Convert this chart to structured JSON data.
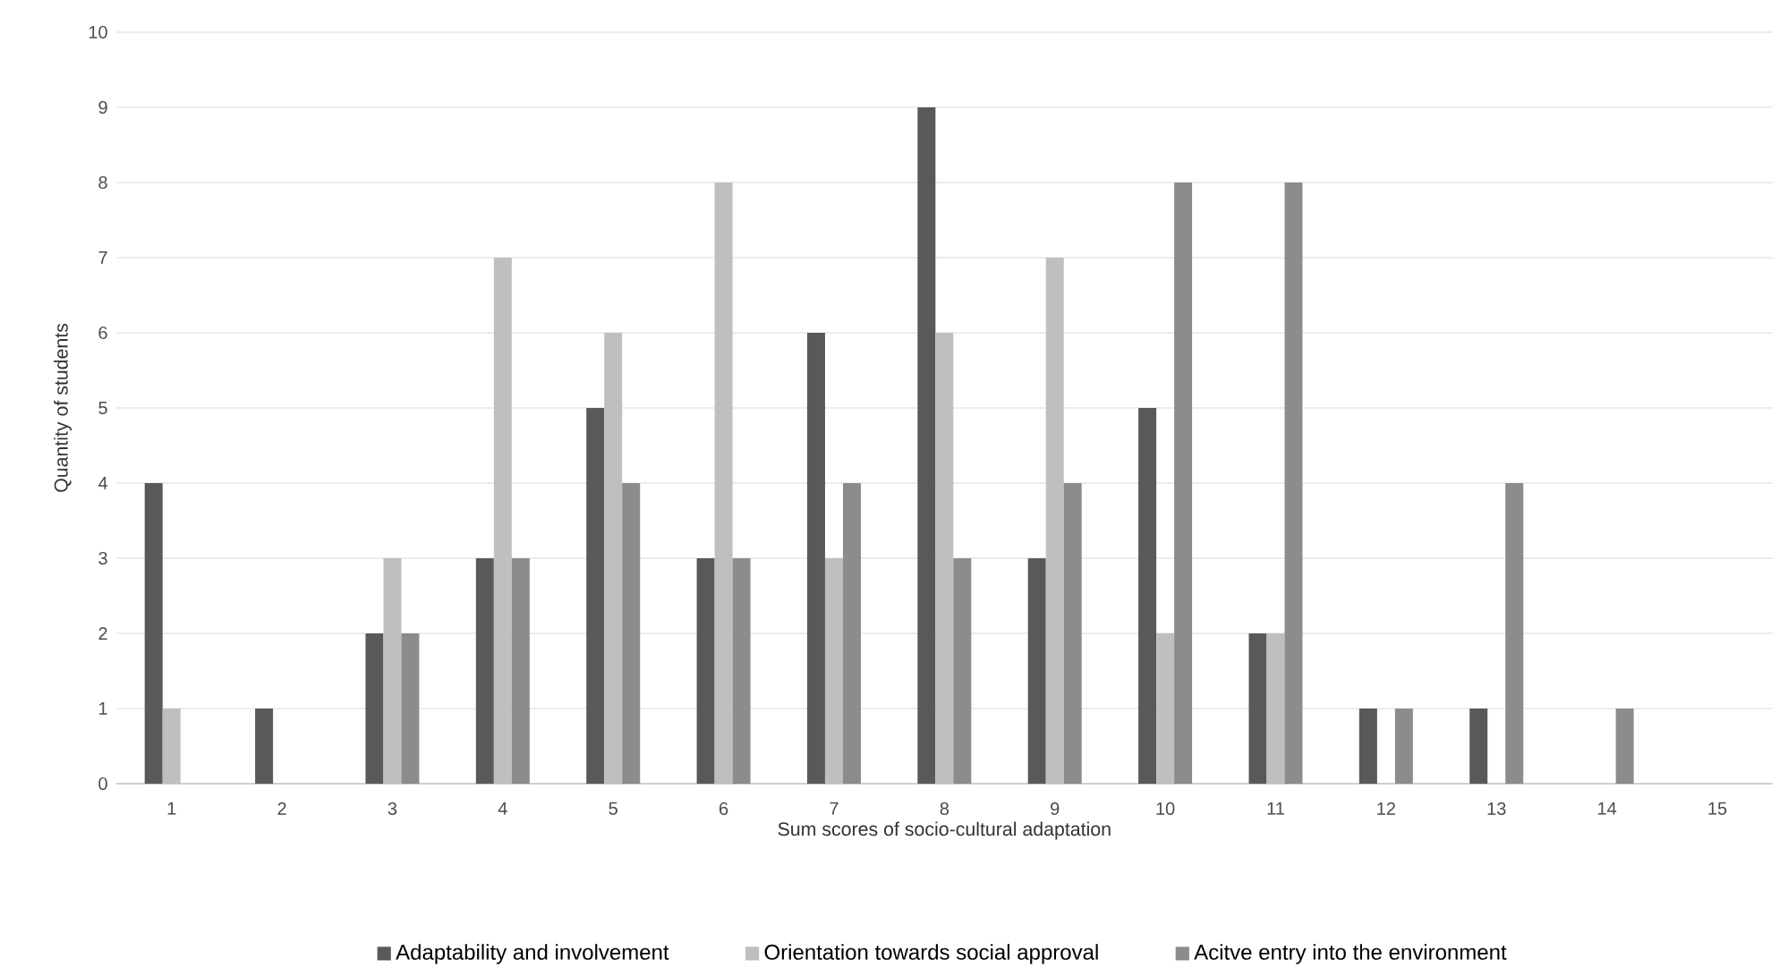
{
  "chart_data": {
    "type": "bar",
    "xlabel": "Sum scores of socio-cultural adaptation",
    "ylabel": "Quantity of students",
    "categories": [
      "1",
      "2",
      "3",
      "4",
      "5",
      "6",
      "7",
      "8",
      "9",
      "10",
      "11",
      "12",
      "13",
      "14",
      "15"
    ],
    "series": [
      {
        "name": "Adaptability and involvement",
        "color": "#595959",
        "values": [
          4,
          1,
          2,
          3,
          5,
          3,
          6,
          9,
          3,
          5,
          2,
          1,
          1,
          0,
          0
        ]
      },
      {
        "name": "Orientation towards social approval",
        "color": "#bfbfbf",
        "values": [
          1,
          0,
          3,
          7,
          6,
          8,
          3,
          6,
          7,
          2,
          2,
          0,
          0,
          0,
          0
        ]
      },
      {
        "name": "Acitve entry into the environment",
        "color": "#8c8c8c",
        "values": [
          0,
          0,
          2,
          3,
          4,
          3,
          4,
          3,
          4,
          8,
          8,
          1,
          4,
          1,
          0
        ]
      }
    ],
    "ylim": [
      0,
      10
    ],
    "yticks": [
      0,
      1,
      2,
      3,
      4,
      5,
      6,
      7,
      8,
      9,
      10
    ],
    "grid": "y",
    "legend": "bottom"
  }
}
